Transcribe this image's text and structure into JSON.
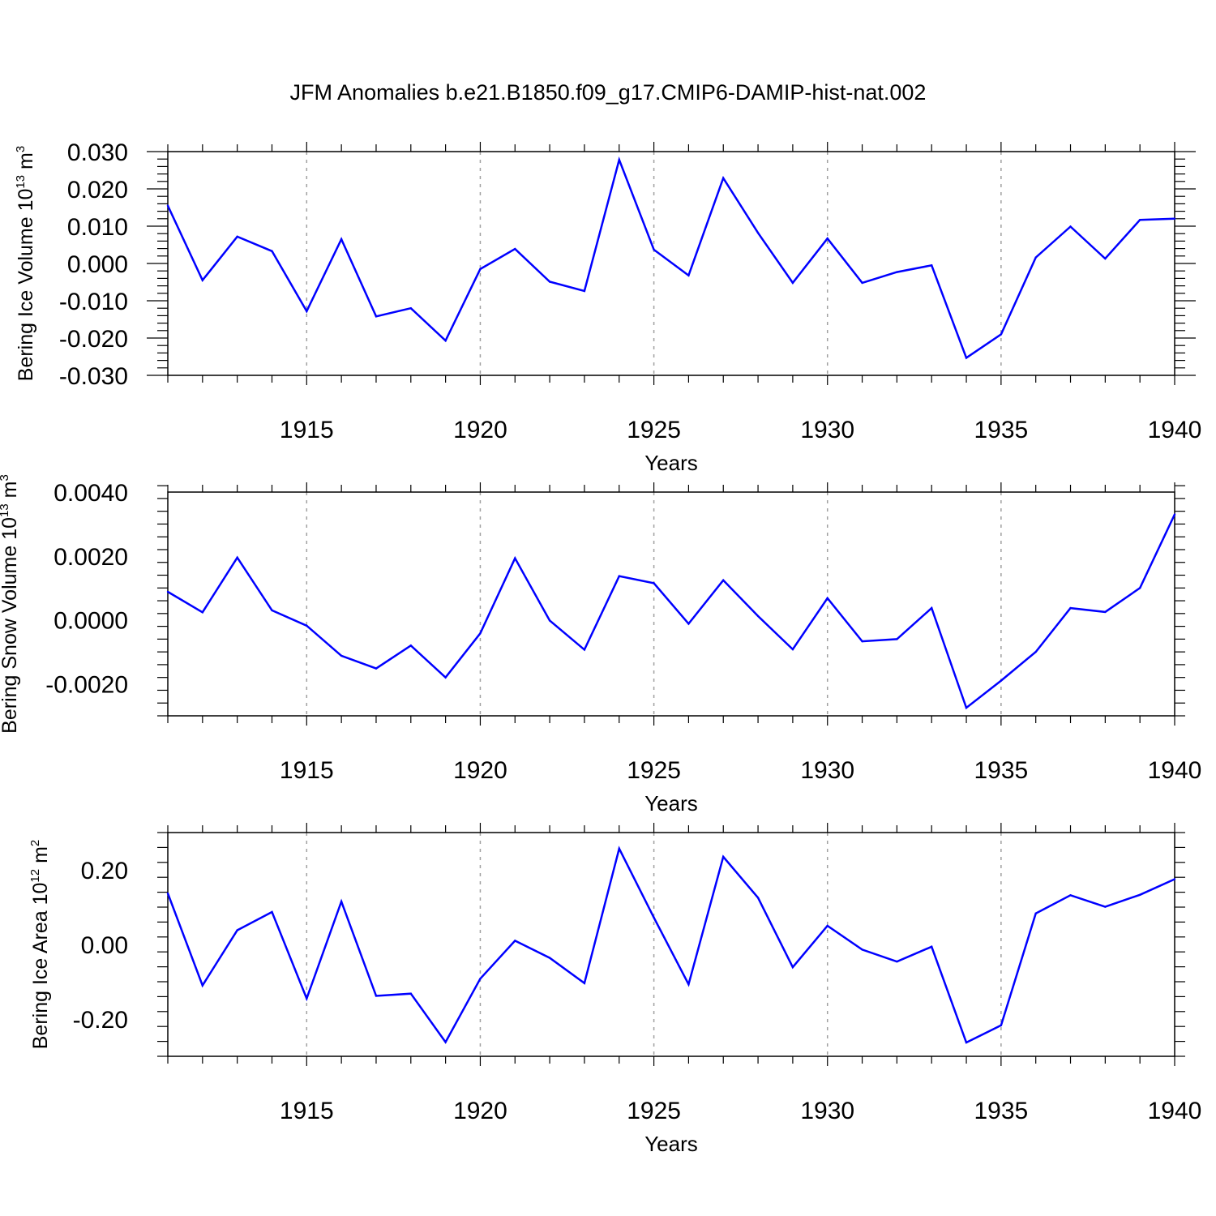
{
  "colors": {
    "line": "#0000ff",
    "grid": "#a0a0a0",
    "axis": "#000000",
    "background": "#ffffff"
  },
  "chart_data": [
    {
      "type": "line",
      "title": "JFM Anomalies b.e21.B1850.f09_g17.CMIP6-DAMIP-hist-nat.002",
      "ylabel": {
        "main": "Bering Ice Volume 10",
        "exp": "13",
        "unit": " m",
        "unit_exp": "3"
      },
      "xlabel": "Years",
      "xlim": [
        1911,
        1940
      ],
      "ylim": [
        -0.03,
        0.03
      ],
      "yticks": [
        -0.03,
        -0.02,
        -0.01,
        0.0,
        0.01,
        0.02,
        0.03
      ],
      "ytick_labels": [
        "-0.030",
        "-0.020",
        "-0.010",
        "0.000",
        "0.010",
        "0.020",
        "0.030"
      ],
      "xticks": [
        1915,
        1920,
        1925,
        1930,
        1935,
        1940
      ],
      "xtick_labels": [
        "1915",
        "1920",
        "1925",
        "1930",
        "1935",
        "1940"
      ],
      "x": [
        1911,
        1912,
        1913,
        1914,
        1915,
        1916,
        1917,
        1918,
        1919,
        1920,
        1921,
        1922,
        1923,
        1924,
        1925,
        1926,
        1927,
        1928,
        1929,
        1930,
        1931,
        1932,
        1933,
        1934,
        1935,
        1936,
        1937,
        1938,
        1939,
        1940
      ],
      "values": [
        0.0155,
        -0.0045,
        0.0072,
        0.0033,
        -0.0128,
        0.0065,
        -0.0142,
        -0.012,
        -0.0207,
        -0.0015,
        0.0039,
        -0.0049,
        -0.0074,
        0.0278,
        0.0037,
        -0.0032,
        0.0229,
        0.0082,
        -0.0052,
        0.0067,
        -0.0052,
        -0.0023,
        -0.0005,
        -0.0253,
        -0.019,
        0.0016,
        0.0099,
        0.0013,
        0.0117,
        0.012
      ]
    },
    {
      "type": "line",
      "ylabel": {
        "main": "Bering Snow Volume 10",
        "exp": "13",
        "unit": " m",
        "unit_exp": "3"
      },
      "xlabel": "Years",
      "xlim": [
        1911,
        1940
      ],
      "ylim": [
        -0.003,
        0.004
      ],
      "yticks": [
        -0.002,
        0.0,
        0.002,
        0.004
      ],
      "ytick_labels": [
        "-0.0020",
        "0.0000",
        "0.0020",
        "0.0040"
      ],
      "xticks": [
        1915,
        1920,
        1925,
        1930,
        1935,
        1940
      ],
      "xtick_labels": [
        "1915",
        "1920",
        "1925",
        "1930",
        "1935",
        "1940"
      ],
      "x": [
        1911,
        1912,
        1913,
        1914,
        1915,
        1916,
        1917,
        1918,
        1919,
        1920,
        1921,
        1922,
        1923,
        1924,
        1925,
        1926,
        1927,
        1928,
        1929,
        1930,
        1931,
        1932,
        1933,
        1934,
        1935,
        1936,
        1937,
        1938,
        1939,
        1940
      ],
      "values": [
        0.00088,
        0.00024,
        0.00195,
        0.0003,
        -0.00018,
        -0.00112,
        -0.00152,
        -0.0008,
        -0.0018,
        -0.00042,
        0.00193,
        -2e-05,
        -0.00093,
        0.00137,
        0.00115,
        -0.00012,
        0.00124,
        0.00012,
        -0.00092,
        0.00068,
        -0.00067,
        -0.0006,
        0.00037,
        -0.00275,
        -0.0019,
        -0.001,
        0.00037,
        0.00025,
        0.001,
        0.0033
      ]
    },
    {
      "type": "line",
      "ylabel": {
        "main": "Bering Ice Area 10",
        "exp": "12",
        "unit": " m",
        "unit_exp": "2"
      },
      "xlabel": "Years",
      "xlim": [
        1911,
        1940
      ],
      "ylim": [
        -0.3,
        0.3
      ],
      "yticks": [
        -0.2,
        0.0,
        0.2
      ],
      "ytick_labels": [
        "-0.20",
        "0.00",
        "0.20"
      ],
      "xticks": [
        1915,
        1920,
        1925,
        1930,
        1935,
        1940
      ],
      "xtick_labels": [
        "1915",
        "1920",
        "1925",
        "1930",
        "1935",
        "1940"
      ],
      "x": [
        1911,
        1912,
        1913,
        1914,
        1915,
        1916,
        1917,
        1918,
        1919,
        1920,
        1921,
        1922,
        1923,
        1924,
        1925,
        1926,
        1927,
        1928,
        1929,
        1930,
        1931,
        1932,
        1933,
        1934,
        1935,
        1936,
        1937,
        1938,
        1939,
        1940
      ],
      "values": [
        0.137,
        -0.11,
        0.038,
        0.087,
        -0.145,
        0.115,
        -0.138,
        -0.132,
        -0.262,
        -0.092,
        0.01,
        -0.036,
        -0.104,
        0.257,
        0.072,
        -0.107,
        0.235,
        0.125,
        -0.061,
        0.05,
        -0.014,
        -0.046,
        -0.006,
        -0.263,
        -0.217,
        0.083,
        0.132,
        0.101,
        0.133,
        0.175
      ]
    }
  ]
}
